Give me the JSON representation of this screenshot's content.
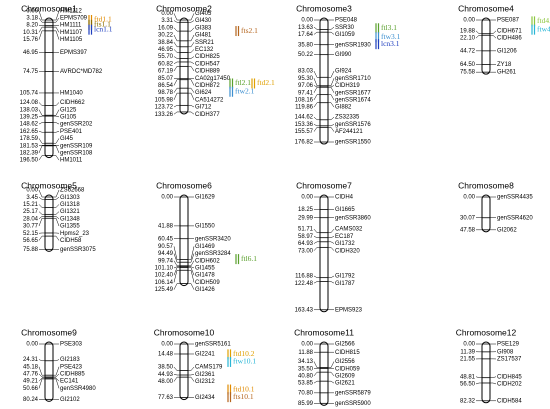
{
  "chromosomes": [
    {
      "title": "Chromosome1",
      "markers": [
        [
          "0.00",
          "HM1112"
        ],
        [
          "3.18",
          "EPMS709"
        ],
        [
          "8.20",
          "HM1111"
        ],
        [
          "10.31",
          "HM1107"
        ],
        [
          "15.76",
          "HM1105"
        ],
        [
          "46.95",
          "EPMS397"
        ],
        [
          "74.75",
          "AVRDC*MD782"
        ],
        [
          "105.74",
          "HM1040"
        ],
        [
          "124.08",
          "CIDH662"
        ],
        [
          "138.03",
          "GI125"
        ],
        [
          "139.25",
          "GI105"
        ],
        [
          "148.62",
          "genSSR202"
        ],
        [
          "162.65",
          "PSE401"
        ],
        [
          "178.59",
          "GI45"
        ],
        [
          "181.53",
          "genSSR109"
        ],
        [
          "182.39",
          "genSSR108"
        ],
        [
          "196.50",
          "HM1011"
        ]
      ],
      "qtls": [
        {
          "label": "ftd1.1",
          "color": "#e08a00"
        },
        {
          "label": "fts1.1",
          "color": "#8a6d00"
        },
        {
          "label": "lcn1.1",
          "color": "#1f3fbf"
        }
      ]
    },
    {
      "title": "Chromosome2",
      "markers": [
        [
          "0.00",
          "GI405"
        ],
        [
          "3.31",
          "GI430"
        ],
        [
          "16.09",
          "GI383"
        ],
        [
          "30.22",
          "GI481"
        ],
        [
          "38.84",
          "SSR21"
        ],
        [
          "46.95",
          "EC132"
        ],
        [
          "55.70",
          "CIDH825"
        ],
        [
          "60.82",
          "CIDH547"
        ],
        [
          "67.19",
          "CIDH889"
        ],
        [
          "85.07",
          "CA02g17450"
        ],
        [
          "86.54",
          "CIDH872"
        ],
        [
          "98.78",
          "GI624"
        ],
        [
          "105.98",
          "CA514272"
        ],
        [
          "123.72",
          "GI712"
        ],
        [
          "133.26",
          "CIDH377"
        ]
      ],
      "qtls": [
        {
          "label": "fts2.1",
          "color": "#b5651d"
        },
        {
          "label": "ftl2.1",
          "color": "#5aa02c"
        },
        {
          "label": "ftd2.1",
          "color": "#e0a000"
        },
        {
          "label": "ftw2.1",
          "color": "#3c8fd0"
        }
      ]
    },
    {
      "title": "Chromosome3",
      "markers": [
        [
          "0.00",
          "PSE048"
        ],
        [
          "13.63",
          "SSR30"
        ],
        [
          "17.64",
          "GI1059"
        ],
        [
          "35.80",
          "genSSR1930"
        ],
        [
          "50.22",
          "GI990"
        ],
        [
          "83.03",
          "GI924"
        ],
        [
          "95.30",
          "genSSR1710"
        ],
        [
          "97.06",
          "CIDH319"
        ],
        [
          "97.41",
          "genSSR1677"
        ],
        [
          "108.16",
          "genSSR1674"
        ],
        [
          "119.86",
          "GI882"
        ],
        [
          "144.62",
          "ZS32335"
        ],
        [
          "153.36",
          "genSSR1576"
        ],
        [
          "155.57",
          "AF244121"
        ],
        [
          "176.82",
          "genSSR1550"
        ]
      ],
      "qtls": [
        {
          "label": "ftl3.1",
          "color": "#5aa02c"
        },
        {
          "label": "ftw3.1",
          "color": "#3c8fd0"
        },
        {
          "label": "lcn3.1",
          "color": "#1f3fbf"
        }
      ]
    },
    {
      "title": "Chromosome4",
      "markers": [
        [
          "0.00",
          "PSE087"
        ],
        [
          "19.88",
          "CIDH671"
        ],
        [
          "22.10",
          "CIDH486"
        ],
        [
          "44.72",
          "GI1206"
        ],
        [
          "64.50",
          "ZY18"
        ],
        [
          "75.58",
          "GH261"
        ]
      ],
      "qtls": [
        {
          "label": "ftd4.1",
          "color": "#8cc63f"
        },
        {
          "label": "ftw4.1",
          "color": "#29b6d6"
        }
      ]
    },
    {
      "title": "Chromosome5",
      "markers": [
        [
          "0.00",
          "ZS62668"
        ],
        [
          "3.45",
          "GI1303"
        ],
        [
          "15.21",
          "GI1318"
        ],
        [
          "25.17",
          "GI1321"
        ],
        [
          "28.04",
          "GI1348"
        ],
        [
          "30.77",
          "GI1355"
        ],
        [
          "52.15",
          "Hpms2_23"
        ],
        [
          "56.65",
          "CIDH58"
        ],
        [
          "75.88",
          "genSSR3075"
        ]
      ],
      "qtls": []
    },
    {
      "title": "Chromosome6",
      "markers": [
        [
          "0.00",
          "GI1629"
        ],
        [
          "41.88",
          "GI1550"
        ],
        [
          "60.45",
          "genSSR3420"
        ],
        [
          "90.57",
          "GI1469"
        ],
        [
          "94.49",
          "genSSR3284"
        ],
        [
          "99.74",
          "CIDH602"
        ],
        [
          "101.10",
          "GI1455"
        ],
        [
          "102.40",
          "GI1478"
        ],
        [
          "106.14",
          "CIDH509"
        ],
        [
          "125.49",
          "GI1426"
        ]
      ],
      "qtls": [
        {
          "label": "ftl6.1",
          "color": "#5aa02c"
        }
      ]
    },
    {
      "title": "Chromosome7",
      "markers": [
        [
          "0.00",
          "CIDH4"
        ],
        [
          "18.25",
          "GI1665"
        ],
        [
          "29.99",
          "genSSR3860"
        ],
        [
          "51.71",
          "CAMS032"
        ],
        [
          "58.97",
          "EC187"
        ],
        [
          "64.93",
          "GI1732"
        ],
        [
          "73.00",
          "CIDH320"
        ],
        [
          "116.88",
          "GI1792"
        ],
        [
          "122.48",
          "GI1787"
        ],
        [
          "163.43",
          "EPMS923"
        ]
      ],
      "qtls": []
    },
    {
      "title": "Chromosome8",
      "markers": [
        [
          "0.00",
          "genSSR4435"
        ],
        [
          "30.07",
          "genSSR4620"
        ],
        [
          "47.58",
          "GI2062"
        ]
      ],
      "qtls": []
    },
    {
      "title": "Chromosome9",
      "markers": [
        [
          "0.00",
          "PSE303"
        ],
        [
          "24.31",
          "GI2183"
        ],
        [
          "45.18",
          "PSE423"
        ],
        [
          "47.76",
          "CIDH885"
        ],
        [
          "49.21",
          "EC141"
        ],
        [
          "50.66",
          "genSSR4980"
        ],
        [
          "80.24",
          "GI2102"
        ]
      ],
      "qtls": []
    },
    {
      "title": "Chromosome10",
      "markers": [
        [
          "0.00",
          "genSSR5161"
        ],
        [
          "14.48",
          "GI2241"
        ],
        [
          "38.50",
          "CAMS179"
        ],
        [
          "44.93",
          "GI2361"
        ],
        [
          "48.00",
          "GI2312"
        ],
        [
          "77.63",
          "GI2434"
        ]
      ],
      "qtls": [
        {
          "label": "ftd10.2",
          "color": "#e0a000"
        },
        {
          "label": "ftw10.1",
          "color": "#29b6d6"
        },
        {
          "label": "ftd10.1",
          "color": "#e08a00"
        },
        {
          "label": "fts10.1",
          "color": "#b5651d"
        }
      ]
    },
    {
      "title": "Chromosome11",
      "markers": [
        [
          "0.00",
          "GI2566"
        ],
        [
          "11.88",
          "CIDH815"
        ],
        [
          "34.13",
          "GI2556"
        ],
        [
          "35.50",
          "CIDH059"
        ],
        [
          "40.80",
          "GI2609"
        ],
        [
          "53.85",
          "GI2621"
        ],
        [
          "70.80",
          "genSSR5879"
        ],
        [
          "85.99",
          "genSSR5900"
        ]
      ],
      "qtls": []
    },
    {
      "title": "Chromosome12",
      "markers": [
        [
          "0.00",
          "PSE129"
        ],
        [
          "11.39",
          "GI908"
        ],
        [
          "21.55",
          "ZS17537"
        ],
        [
          "48.81",
          "CIDH845"
        ],
        [
          "56.50",
          "CIDH202"
        ],
        [
          "82.32",
          "CIDH584"
        ]
      ],
      "qtls": []
    }
  ]
}
